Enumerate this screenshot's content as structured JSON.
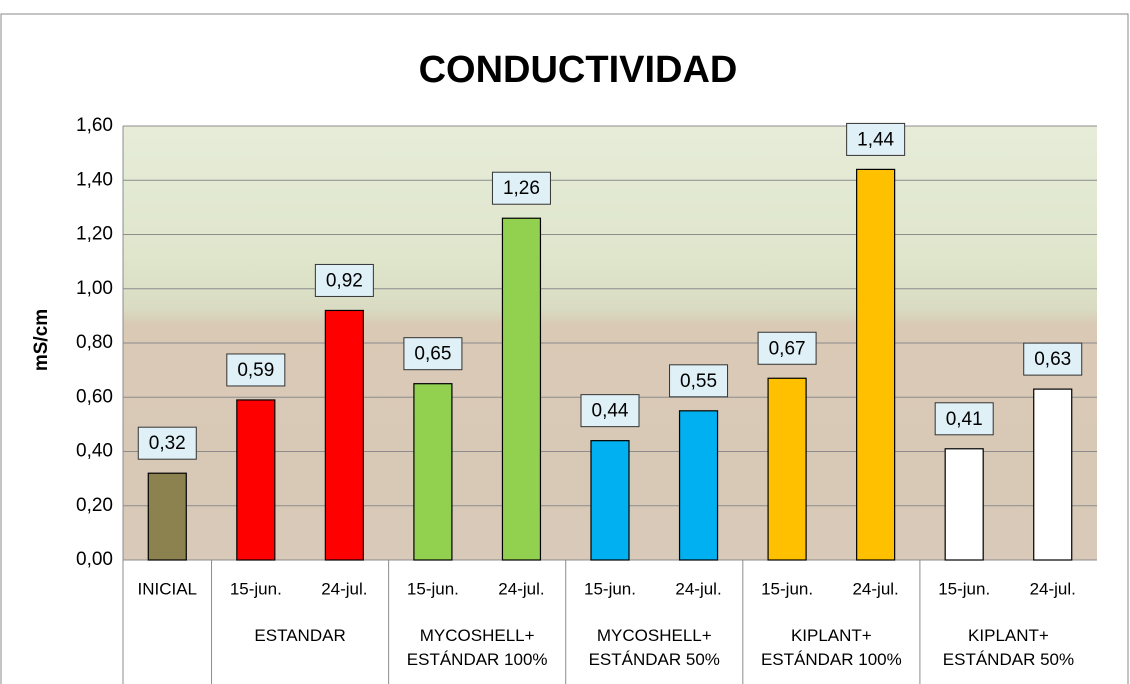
{
  "chart_data": {
    "type": "bar",
    "title": "CONDUCTIVIDAD",
    "y_label": "mS/cm",
    "categories": [
      "INICIAL",
      "15-jun.",
      "24-jul.",
      "15-jun.",
      "24-jul.",
      "15-jun.",
      "24-jul.",
      "15-jun.",
      "24-jul.",
      "15-jun.",
      "24-jul."
    ],
    "category_groups": [
      null,
      "ESTANDAR",
      "ESTANDAR",
      "MYCOSHELL+\nESTÁNDAR 100%",
      "MYCOSHELL+\nESTÁNDAR 100%",
      "MYCOSHELL+\nESTÁNDAR 50%",
      "MYCOSHELL+\nESTÁNDAR 50%",
      "KIPLANT+\nESTÁNDAR 100%",
      "KIPLANT+\nESTÁNDAR 100%",
      "KIPLANT+\nESTÁNDAR 50%",
      "KIPLANT+\nESTÁNDAR 50%"
    ],
    "values": [
      0.32,
      0.59,
      0.92,
      0.65,
      1.26,
      0.44,
      0.55,
      0.67,
      1.44,
      0.41,
      0.63
    ],
    "value_labels": [
      "0,32",
      "0,59",
      "0,92",
      "0,65",
      "1,26",
      "0,44",
      "0,55",
      "0,67",
      "1,44",
      "0,41",
      "0,63"
    ],
    "colors": [
      "#8b8250",
      "#ff0000",
      "#ff0000",
      "#92d050",
      "#92d050",
      "#00b0f0",
      "#00b0f0",
      "#ffc000",
      "#ffc000",
      "#ffffff",
      "#ffffff"
    ],
    "ylim": [
      0,
      1.6
    ],
    "yticks": [
      {
        "value": 0,
        "label": "0,00"
      },
      {
        "value": 0.2,
        "label": "0,20"
      },
      {
        "value": 0.4,
        "label": "0,40"
      },
      {
        "value": 0.6,
        "label": "0,60"
      },
      {
        "value": 0.8,
        "label": "0,80"
      },
      {
        "value": 1.0,
        "label": "1,00"
      },
      {
        "value": 1.2,
        "label": "1,20"
      },
      {
        "value": 1.4,
        "label": "1,40"
      },
      {
        "value": 1.6,
        "label": "1,60"
      }
    ],
    "grid": true
  }
}
